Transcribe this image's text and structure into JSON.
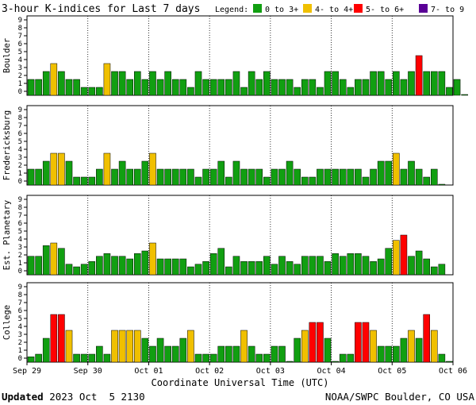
{
  "chart_data": {
    "type": "bar",
    "title": "3-hour K-indices for Last 7 days",
    "legend": {
      "label": "Legend:",
      "entries": [
        {
          "label": "0 to 3+",
          "color": "#119f11"
        },
        {
          "label": "4- to 4+",
          "color": "#f0c000"
        },
        {
          "label": "5- to 6+",
          "color": "#ff0000"
        },
        {
          "label": "7- to 9",
          "color": "#5a0096"
        }
      ]
    },
    "ylim": [
      0,
      9
    ],
    "yticks": [
      "0",
      "1",
      "2",
      "3",
      "4",
      "5",
      "6",
      "7",
      "8",
      "9"
    ],
    "xlabel": "Coordinate Universal Time (UTC)",
    "date_labels": [
      "Sep 29",
      "Sep 30",
      "Oct 01",
      "Oct 02",
      "Oct 03",
      "Oct 04",
      "Oct 05",
      "Oct 06"
    ],
    "panels": [
      {
        "name": "Boulder",
        "values": [
          2,
          2,
          3,
          4,
          3,
          2,
          2,
          1,
          1,
          1,
          4,
          3,
          3,
          2,
          3,
          2,
          3,
          2,
          3,
          2,
          2,
          1,
          3,
          2,
          2,
          2,
          2,
          3,
          1,
          3,
          2,
          3,
          2,
          2,
          2,
          1,
          2,
          2,
          1,
          3,
          3,
          2,
          1,
          2,
          2,
          3,
          3,
          2,
          3,
          2,
          3,
          5,
          3,
          3,
          3,
          1,
          2,
          0.1
        ]
      },
      {
        "name": "Fredericksburg",
        "values": [
          2,
          2,
          3,
          4,
          4,
          3,
          1,
          1,
          1,
          2,
          4,
          2,
          3,
          2,
          2,
          3,
          4,
          2,
          2,
          2,
          2,
          2,
          1,
          2,
          2,
          3,
          1,
          3,
          2,
          2,
          2,
          1,
          2,
          2,
          3,
          2,
          1,
          1,
          2,
          2,
          2,
          2,
          2,
          2,
          1,
          2,
          3,
          3,
          4,
          2,
          3,
          2,
          1,
          2,
          0.1
        ]
      },
      {
        "name": "Est. Planetary",
        "values": [
          2.33,
          2.33,
          3.67,
          4,
          3.33,
          1.33,
          1,
          1.33,
          1.67,
          2.33,
          2.67,
          2.33,
          2.33,
          2,
          2.67,
          3,
          4,
          2,
          2,
          2,
          2,
          1,
          1.33,
          1.67,
          2.67,
          3.33,
          1,
          2.33,
          1.67,
          1.67,
          1.67,
          2.33,
          1.33,
          2.33,
          1.67,
          1.33,
          2.33,
          2.33,
          2.33,
          1.67,
          2.67,
          2.33,
          2.67,
          2.67,
          2.33,
          1.67,
          2,
          3.33,
          4.33,
          5,
          2.33,
          3,
          2,
          1,
          1.33
        ]
      },
      {
        "name": "College",
        "values": [
          0.67,
          1,
          3,
          6,
          6,
          4,
          1,
          1,
          1,
          2,
          1,
          4,
          4,
          4,
          4,
          3,
          2,
          3,
          2,
          2,
          3,
          4,
          1,
          1,
          1,
          2,
          2,
          2,
          4,
          2,
          1,
          1,
          2,
          2,
          0.1,
          3,
          4,
          5,
          5,
          3,
          0.1,
          1,
          1,
          5,
          5,
          4,
          2,
          2,
          2,
          3,
          4,
          3,
          6,
          4,
          1,
          0.1
        ]
      }
    ]
  },
  "footer": {
    "updated_label": "Updated",
    "updated_value": "2023 Oct  5 2130",
    "source": "NOAA/SWPC Boulder, CO USA"
  }
}
